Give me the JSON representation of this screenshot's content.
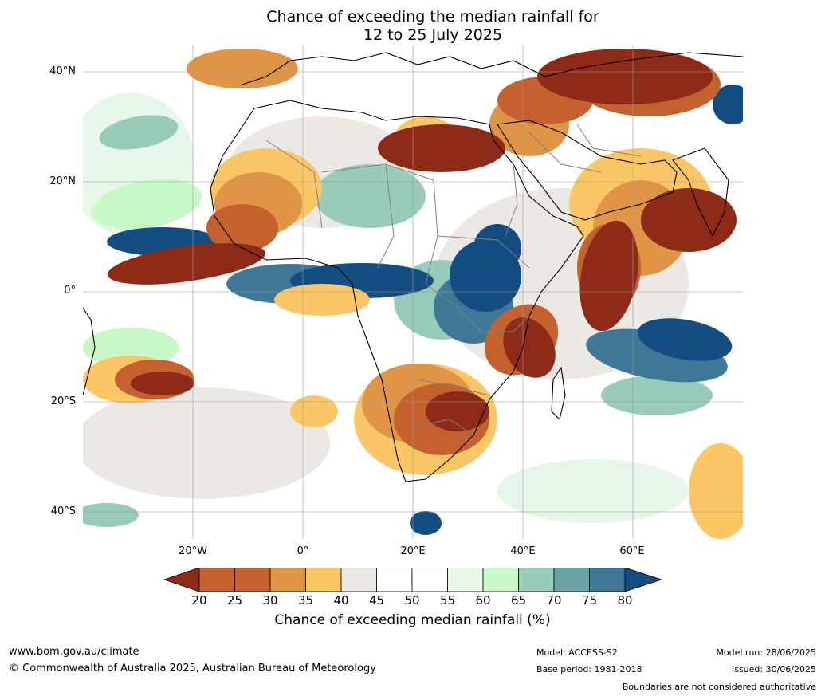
{
  "title": {
    "line1": "Chance of exceeding the median rainfall for",
    "line2": "12 to 25 July 2025"
  },
  "map": {
    "lat_labels": [
      "40°N",
      "20°N",
      "0°",
      "20°S",
      "40°S"
    ],
    "lon_labels": [
      "20°W",
      "0°",
      "20°E",
      "40°E",
      "60°E"
    ],
    "colors": {
      "very_dry": "#8e2b18",
      "dry": "#c4612e",
      "mod_dry": "#e09446",
      "light_dry": "#fbc766",
      "neutral": "#ece9e4",
      "white": "#ffffff",
      "light_wet": "#e7f6e8",
      "mod_wet": "#c8f8c8",
      "wet": "#98cbb8",
      "wetter": "#67a3a4",
      "very_wet": "#3e7896",
      "extreme_wet": "#134d81",
      "coast": "#000000",
      "border": "#808080"
    }
  },
  "colorbar": {
    "ticks": [
      "20",
      "25",
      "30",
      "35",
      "40",
      "45",
      "50",
      "55",
      "60",
      "65",
      "70",
      "75",
      "80"
    ],
    "label": "Chance of exceeding median rainfall (%)"
  },
  "footer": {
    "website": "www.bom.gov.au/climate",
    "copyright": "© Commonwealth of Australia 2025, Australian Bureau of Meteorology",
    "model": "Model: ACCESS-S2",
    "base_period": "Base period: 1981-2018",
    "model_run": "Model run: 28/06/2025",
    "issued": "Issued: 30/06/2025",
    "disclaimer": "Boundaries are not considered authoritative"
  }
}
